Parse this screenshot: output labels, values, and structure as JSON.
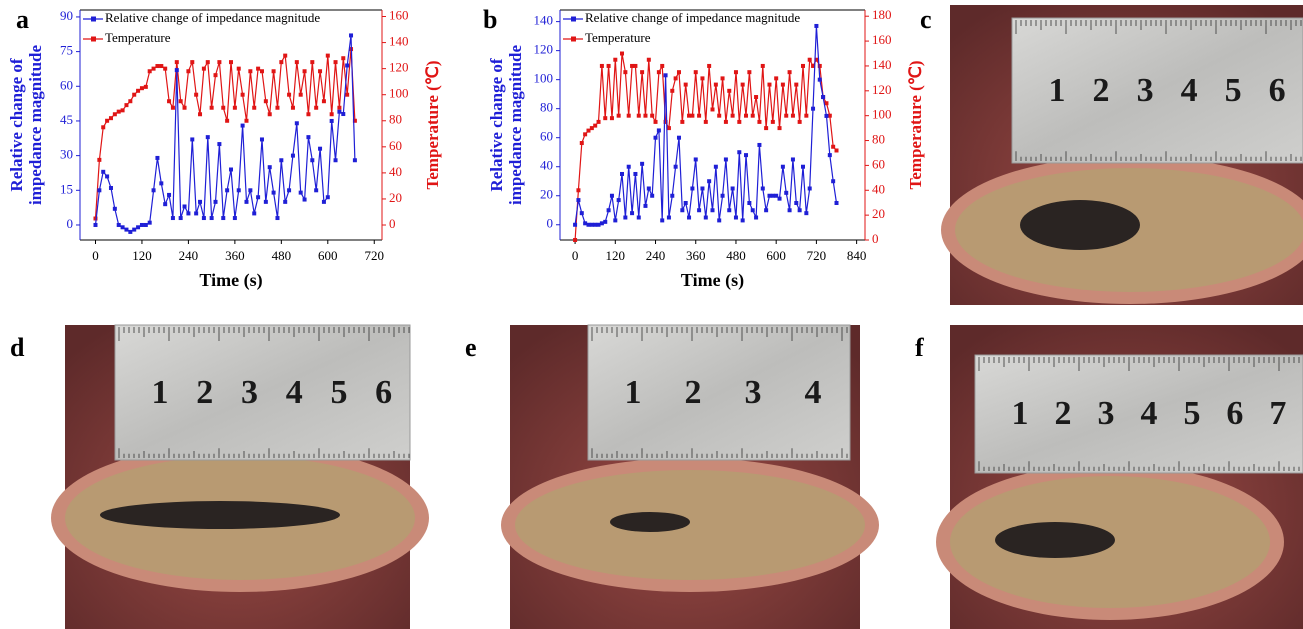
{
  "chart_data": [
    {
      "type": "line",
      "panel_label": "a",
      "xlabel": "Time (s)",
      "ylabel": [
        "Relative change of",
        "impedance magnitude"
      ],
      "y2label": "Temperature (℃)",
      "xlim": [
        -40,
        740
      ],
      "xticks": [
        0,
        120,
        240,
        360,
        480,
        600,
        720
      ],
      "ylim": [
        -6.5,
        93
      ],
      "yticks": [
        0,
        15,
        30,
        45,
        60,
        75,
        90
      ],
      "y2lim": [
        -11.5,
        165
      ],
      "y2ticks": [
        0,
        20,
        40,
        60,
        80,
        100,
        120,
        140,
        160
      ],
      "x": [
        0,
        10,
        20,
        30,
        40,
        50,
        60,
        70,
        80,
        90,
        100,
        110,
        120,
        130,
        140,
        150,
        160,
        170,
        180,
        190,
        200,
        210,
        220,
        230,
        240,
        250,
        260,
        270,
        280,
        290,
        300,
        310,
        320,
        330,
        340,
        350,
        360,
        370,
        380,
        390,
        400,
        410,
        420,
        430,
        440,
        450,
        460,
        470,
        480,
        490,
        500,
        510,
        520,
        530,
        540,
        550,
        560,
        570,
        580,
        590,
        600,
        610,
        620,
        630,
        640,
        650,
        660,
        670
      ],
      "series": [
        {
          "name": "Relative change of impedance magnitude",
          "color": "#1f1fd6",
          "values": [
            0,
            15,
            23,
            21,
            16,
            7,
            0,
            -1,
            -2,
            -3,
            -2,
            -1,
            0,
            0,
            1,
            15,
            29,
            18,
            9,
            13,
            3,
            67,
            3,
            8,
            5,
            37,
            5,
            10,
            3,
            38,
            3,
            10,
            35,
            3,
            15,
            24,
            3,
            15,
            43,
            10,
            15,
            5,
            12,
            37,
            10,
            25,
            14,
            3,
            28,
            10,
            15,
            30,
            44,
            14,
            11,
            38,
            28,
            15,
            33,
            10,
            12,
            45,
            28,
            49,
            48,
            69,
            82,
            28
          ]
        },
        {
          "name": "Temperature",
          "color": "#e01515",
          "axis": "y2",
          "values": [
            5,
            50,
            75,
            80,
            82,
            85,
            87,
            88,
            92,
            95,
            100,
            103,
            105,
            106,
            118,
            120,
            122,
            122,
            120,
            95,
            90,
            125,
            95,
            90,
            118,
            125,
            100,
            85,
            120,
            125,
            90,
            115,
            125,
            90,
            80,
            125,
            90,
            120,
            100,
            80,
            118,
            90,
            120,
            118,
            95,
            85,
            118,
            90,
            125,
            130,
            100,
            90,
            125,
            100,
            118,
            85,
            125,
            90,
            118,
            95,
            130,
            85,
            125,
            90,
            128,
            100,
            135,
            80
          ]
        }
      ]
    },
    {
      "type": "line",
      "panel_label": "b",
      "xlabel": "Time (s)",
      "ylabel": [
        "Relative change of",
        "impedance magnitude"
      ],
      "y2label": "Temperature (℃)",
      "xlim": [
        -45,
        865
      ],
      "xticks": [
        0,
        120,
        240,
        360,
        480,
        600,
        720,
        840
      ],
      "ylim": [
        -10.5,
        148
      ],
      "yticks": [
        0,
        20,
        40,
        60,
        80,
        100,
        120,
        140
      ],
      "y2lim": [
        0,
        185
      ],
      "y2ticks": [
        0,
        20,
        40,
        60,
        80,
        100,
        120,
        140,
        160,
        180
      ],
      "x": [
        0,
        10,
        20,
        30,
        40,
        50,
        60,
        70,
        80,
        90,
        100,
        110,
        120,
        130,
        140,
        150,
        160,
        170,
        180,
        190,
        200,
        210,
        220,
        230,
        240,
        250,
        260,
        270,
        280,
        290,
        300,
        310,
        320,
        330,
        340,
        350,
        360,
        370,
        380,
        390,
        400,
        410,
        420,
        430,
        440,
        450,
        460,
        470,
        480,
        490,
        500,
        510,
        520,
        530,
        540,
        550,
        560,
        570,
        580,
        590,
        600,
        610,
        620,
        630,
        640,
        650,
        660,
        670,
        680,
        690,
        700,
        710,
        720,
        730,
        740,
        750,
        760,
        770,
        780
      ],
      "series": [
        {
          "name": "Relative change of impedance magnitude",
          "color": "#1f1fd6",
          "values": [
            0,
            17,
            8,
            1,
            0,
            0,
            0,
            0,
            1,
            2,
            10,
            20,
            3,
            17,
            35,
            5,
            40,
            8,
            35,
            5,
            42,
            13,
            25,
            20,
            60,
            65,
            3,
            103,
            5,
            20,
            40,
            60,
            10,
            15,
            5,
            25,
            45,
            10,
            25,
            5,
            30,
            10,
            40,
            3,
            20,
            45,
            10,
            25,
            5,
            50,
            3,
            48,
            15,
            10,
            5,
            55,
            25,
            10,
            20,
            20,
            20,
            18,
            40,
            22,
            10,
            45,
            15,
            10,
            40,
            8,
            25,
            80,
            137,
            100,
            88,
            75,
            48,
            30,
            15
          ]
        },
        {
          "name": "Temperature",
          "color": "#e01515",
          "axis": "y2",
          "values": [
            0,
            40,
            78,
            85,
            88,
            90,
            92,
            95,
            140,
            98,
            140,
            98,
            145,
            100,
            150,
            135,
            100,
            140,
            140,
            100,
            135,
            100,
            145,
            100,
            95,
            135,
            140,
            95,
            90,
            120,
            130,
            135,
            95,
            125,
            100,
            100,
            135,
            100,
            130,
            95,
            140,
            105,
            125,
            100,
            130,
            95,
            120,
            100,
            135,
            95,
            125,
            100,
            135,
            100,
            115,
            95,
            140,
            90,
            125,
            95,
            130,
            90,
            125,
            100,
            135,
            100,
            125,
            95,
            140,
            100,
            145,
            140,
            145,
            140,
            115,
            110,
            100,
            75,
            72
          ]
        }
      ]
    }
  ],
  "photos": [
    {
      "label": "c",
      "ruler_numbers": [
        1,
        2,
        3,
        4,
        5,
        6
      ]
    },
    {
      "label": "d",
      "ruler_numbers": [
        1,
        2,
        3,
        4,
        5,
        6
      ]
    },
    {
      "label": "e",
      "ruler_numbers": [
        1,
        2,
        3,
        4
      ]
    },
    {
      "label": "f",
      "ruler_numbers": [
        1,
        2,
        3,
        4,
        5,
        6,
        7
      ]
    }
  ]
}
